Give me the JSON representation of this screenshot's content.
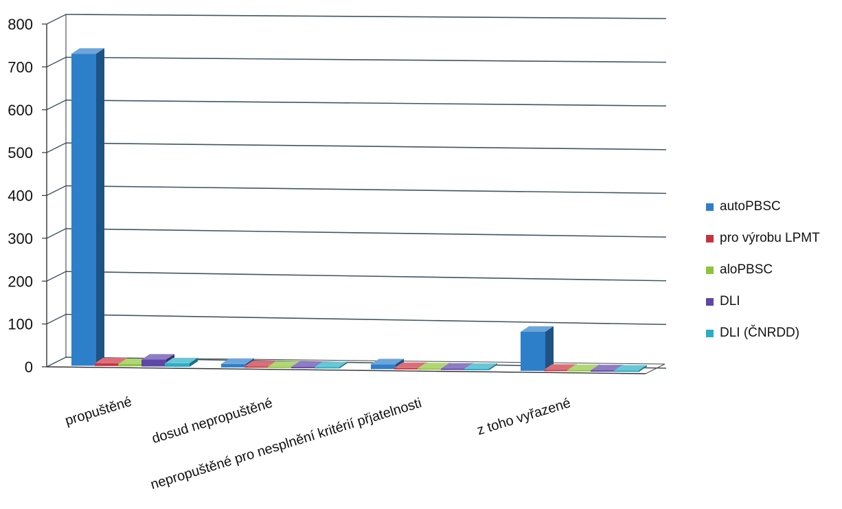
{
  "chart_data": {
    "type": "bar",
    "categories": [
      "propuštěné",
      "dosud nepropuštěné",
      "nepropuštěné pro nesplnění kritérií přjatelnosti",
      "z toho vyřazené"
    ],
    "series": [
      {
        "name": "autoPBSC",
        "color": "#2e7fca",
        "values": [
          725,
          5,
          8,
          88
        ]
      },
      {
        "name": "pro výrobu LPMT",
        "color": "#c8323f",
        "values": [
          3,
          0,
          0,
          0
        ]
      },
      {
        "name": "aloPBSC",
        "color": "#8fc43a",
        "values": [
          2,
          0,
          0,
          0
        ]
      },
      {
        "name": "DLI",
        "color": "#5e45a8",
        "values": [
          13,
          0,
          0,
          0
        ]
      },
      {
        "name": "DLI (ČNRDD)",
        "color": "#2aaec6",
        "values": [
          5,
          0,
          0,
          0
        ]
      }
    ],
    "yticks": [
      "0",
      "100",
      "200",
      "300",
      "400",
      "500",
      "600",
      "700",
      "800"
    ],
    "ylim": [
      0,
      800
    ],
    "grid": true,
    "legend_position": "right"
  }
}
